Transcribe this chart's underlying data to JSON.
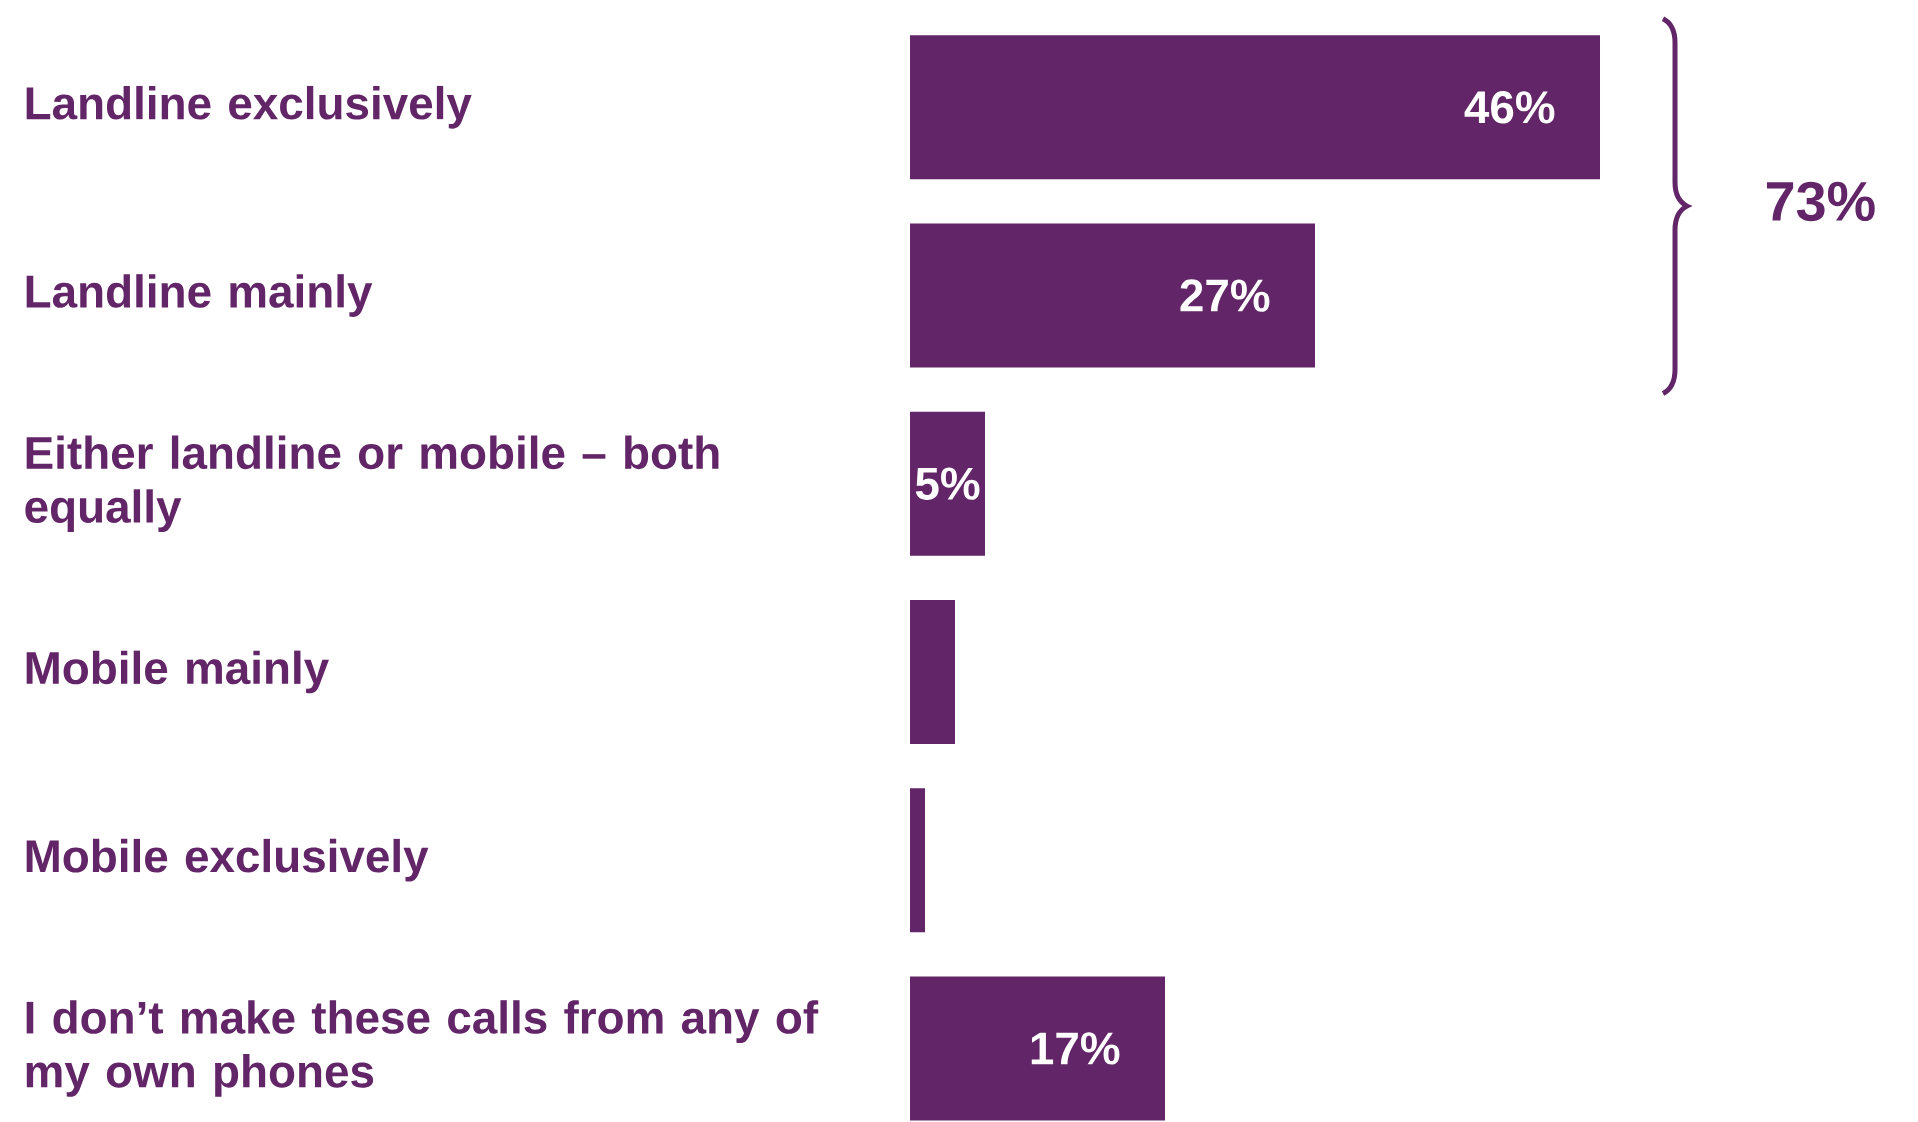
{
  "chart_data": {
    "type": "bar",
    "orientation": "horizontal",
    "categories": [
      "Landline exclusively",
      "Landline mainly",
      "Either landline or mobile – both equally",
      "Mobile mainly",
      "Mobile exclusively",
      "I don’t make these calls from any of my own phones"
    ],
    "values": [
      46,
      27,
      5,
      3,
      1,
      17
    ],
    "value_labels": [
      "46%",
      "27%",
      "5%",
      null,
      null,
      "17%"
    ],
    "color": "#622567",
    "annotations": [
      "73%"
    ]
  }
}
